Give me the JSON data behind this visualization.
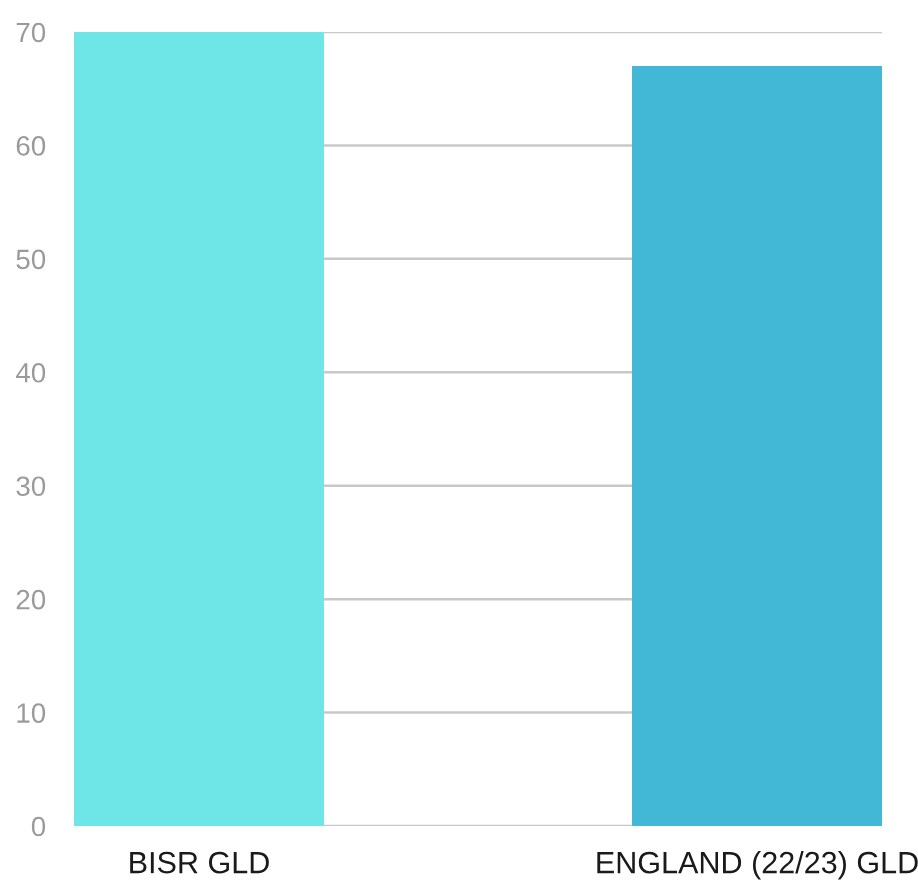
{
  "chart_data": {
    "type": "bar",
    "categories": [
      "BISR GLD",
      "ENGLAND (22/23) GLD"
    ],
    "values": [
      70,
      67
    ],
    "colors": [
      "#6ee6e8",
      "#42b7d6"
    ],
    "ylim": [
      0,
      70
    ],
    "yticks": [
      0,
      10,
      20,
      30,
      40,
      50,
      60,
      70
    ],
    "grid": "y"
  }
}
